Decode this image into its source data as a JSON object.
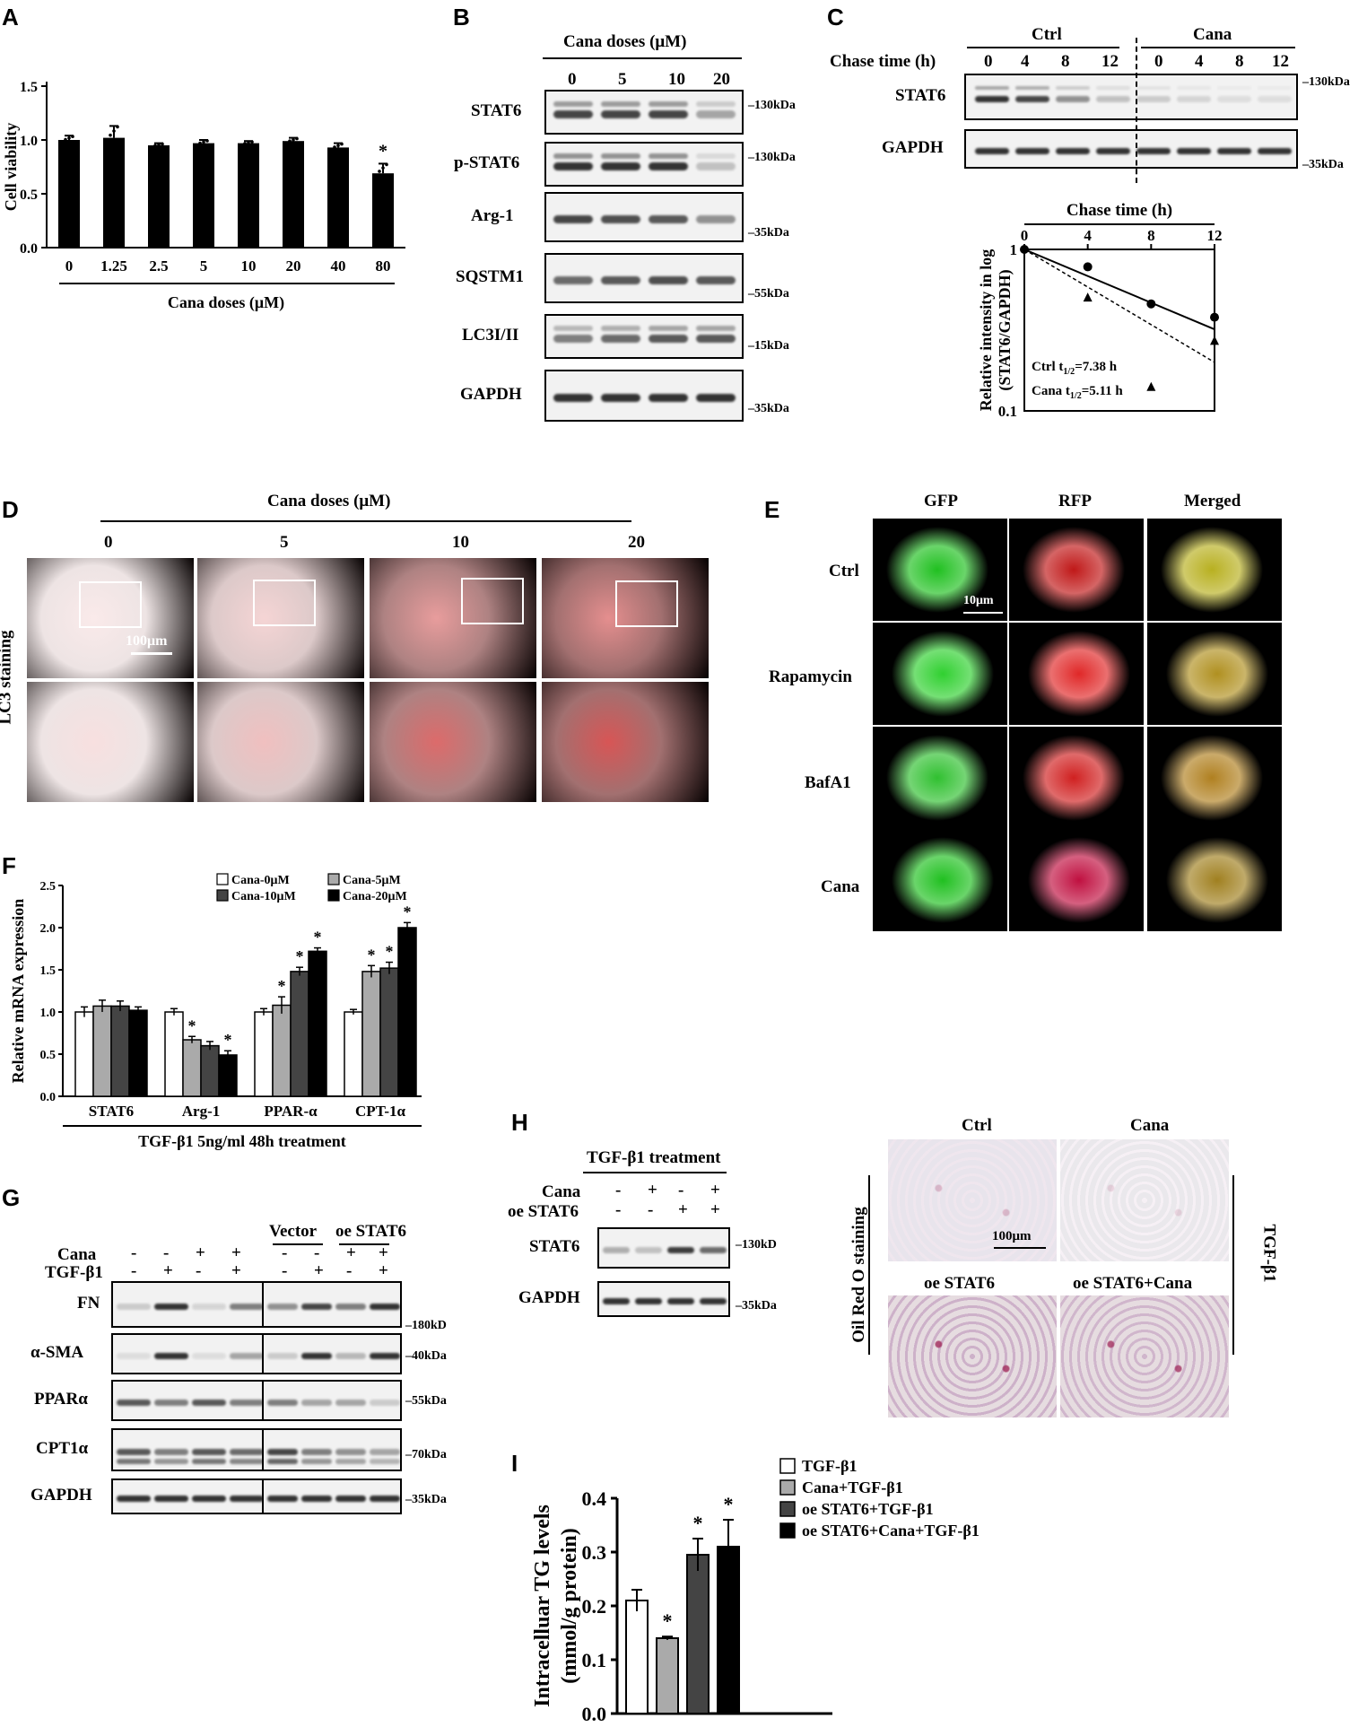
{
  "panels": {
    "A": "A",
    "B": "B",
    "C": "C",
    "D": "D",
    "E": "E",
    "F": "F",
    "G": "G",
    "H": "H",
    "I": "I"
  },
  "panelA": {
    "ylabel": "Cell viability",
    "xlabel": "Cana doses (μM)",
    "yticks": [
      "0.0",
      "0.5",
      "1.0",
      "1.5"
    ],
    "star": "*"
  },
  "panelB": {
    "title": "Cana doses (μM)",
    "lanes": [
      "0",
      "5",
      "10",
      "20"
    ],
    "rows": [
      {
        "label": "STAT6",
        "mw": "130kDa"
      },
      {
        "label": "p-STAT6",
        "mw": "130kDa"
      },
      {
        "label": "Arg-1",
        "mw": "35kDa"
      },
      {
        "label": "SQSTM1",
        "mw": "55kDa"
      },
      {
        "label": "LC3I/II",
        "mw": "15kDa"
      },
      {
        "label": "GAPDH",
        "mw": "35kDa"
      }
    ]
  },
  "panelC": {
    "groups": [
      "Ctrl",
      "Cana"
    ],
    "chase_label": "Chase time (h)",
    "lanes": [
      "0",
      "4",
      "8",
      "12",
      "0",
      "4",
      "8",
      "12"
    ],
    "rows": [
      {
        "label": "STAT6",
        "mw": "130kDa"
      },
      {
        "label": "GAPDH",
        "mw": "35kDa"
      }
    ],
    "plot_title": "Chase time (h)",
    "ylabel1": "Relative intensity in log",
    "ylabel2": "(STAT6/GAPDH)",
    "xticks": [
      "0",
      "4",
      "8",
      "12"
    ],
    "yticks": [
      "1",
      "0.1"
    ],
    "ctrl_half": "Ctrl t",
    "ctrl_half_val": "=7.38 h",
    "cana_half": "Cana t",
    "cana_half_val": "=5.11 h",
    "sub": "1/2"
  },
  "panelD": {
    "title": "Cana doses (μM)",
    "doses": [
      "0",
      "5",
      "10",
      "20"
    ],
    "ylabel": "LC3 staining",
    "scale": "100μm"
  },
  "panelE": {
    "cols": [
      "GFP",
      "RFP",
      "Merged"
    ],
    "rows": [
      "Ctrl",
      "Rapamycin",
      "BafA1",
      "Cana"
    ],
    "scale": "10μm"
  },
  "panelF": {
    "ylabel": "Relative mRNA expression",
    "xlabel": "TGF-β1 5ng/ml 48h treatment",
    "legend": [
      "Cana-0μM",
      "Cana-5μM",
      "Cana-10μM",
      "Cana-20μM"
    ],
    "yticks": [
      "0.0",
      "0.5",
      "1.0",
      "1.5",
      "2.0",
      "2.5"
    ],
    "star": "*"
  },
  "panelG": {
    "rowlabels": [
      "Cana",
      "TGF-β1"
    ],
    "left_signs": [
      [
        "-",
        "-",
        "+",
        "+"
      ],
      [
        "-",
        "+",
        "-",
        "+"
      ]
    ],
    "right_title1": "Vector",
    "right_title2": "oe STAT6",
    "right_signs": [
      [
        "-",
        "-",
        "+",
        "+"
      ],
      [
        "-",
        "+",
        "-",
        "+"
      ]
    ],
    "rows": [
      {
        "label": "FN",
        "mw": "180kD"
      },
      {
        "label": "α-SMA",
        "mw": "40kDa"
      },
      {
        "label": "PPARα",
        "mw": "55kDa"
      },
      {
        "label": "CPT1α",
        "mw": "70kDa"
      },
      {
        "label": "GAPDH",
        "mw": "35kDa"
      }
    ]
  },
  "panelH": {
    "title": "TGF-β1 treatment",
    "rowlabels": [
      "Cana",
      "oe STAT6"
    ],
    "signs": [
      [
        "-",
        "+",
        "-",
        "+"
      ],
      [
        "-",
        "-",
        "+",
        "+"
      ]
    ],
    "rows": [
      {
        "label": "STAT6",
        "mw": "130kD"
      },
      {
        "label": "GAPDH",
        "mw": "35kDa"
      }
    ],
    "stain_label": "Oil Red O staining",
    "cols": [
      "Ctrl",
      "Cana"
    ],
    "bottom": [
      "oe STAT6",
      "oe STAT6+Cana"
    ],
    "side": "TGF-β1",
    "scale": "100μm"
  },
  "panelI": {
    "ylabel1": "Intracelluar TG levels",
    "ylabel2": "(mmol/g protein)",
    "yticks": [
      "0.0",
      "0.1",
      "0.2",
      "0.3",
      "0.4"
    ],
    "legend": [
      "TGF-β1",
      "Cana+TGF-β1",
      "oe STAT6+TGF-β1",
      "oe STAT6+Cana+TGF-β1"
    ],
    "star": "*"
  },
  "colors": {
    "white": "#ffffff",
    "lightgray": "#aaaaaa",
    "darkgray": "#444444",
    "black": "#000000",
    "red": "#cc1010",
    "green": "#1bb01b"
  },
  "chart_data": [
    {
      "type": "bar",
      "panel": "A",
      "categories": [
        "0",
        "1.25",
        "2.5",
        "5",
        "10",
        "20",
        "40",
        "80"
      ],
      "values": [
        1.0,
        1.02,
        0.95,
        0.97,
        0.97,
        0.99,
        0.93,
        0.69
      ],
      "errors": [
        0.04,
        0.11,
        0.02,
        0.03,
        0.02,
        0.03,
        0.04,
        0.09
      ],
      "significant": [
        false,
        false,
        false,
        false,
        false,
        false,
        false,
        true
      ],
      "ylabel": "Cell viability",
      "xlabel": "Cana doses (μM)",
      "ylim": [
        0,
        1.5
      ]
    },
    {
      "type": "scatter",
      "panel": "C",
      "x": [
        0,
        4,
        8,
        12
      ],
      "series": [
        {
          "name": "Ctrl",
          "values": [
            1.0,
            0.78,
            0.46,
            0.38
          ]
        },
        {
          "name": "Cana",
          "values": [
            1.0,
            0.5,
            0.14,
            0.27
          ]
        }
      ],
      "yscale": "log",
      "ylim": [
        0.1,
        1
      ],
      "xlim": [
        0,
        12
      ]
    },
    {
      "type": "bar",
      "panel": "F",
      "categories": [
        "STAT6",
        "Arg-1",
        "PPAR-α",
        "CPT-1α"
      ],
      "series": [
        {
          "name": "Cana-0μM",
          "values": [
            1.0,
            1.0,
            1.0,
            1.0
          ],
          "errors": [
            0.06,
            0.04,
            0.04,
            0.03
          ]
        },
        {
          "name": "Cana-5μM",
          "values": [
            1.07,
            0.67,
            1.08,
            1.48
          ],
          "errors": [
            0.07,
            0.04,
            0.1,
            0.07
          ]
        },
        {
          "name": "Cana-10μM",
          "values": [
            1.07,
            0.6,
            1.48,
            1.52
          ],
          "errors": [
            0.06,
            0.05,
            0.05,
            0.07
          ]
        },
        {
          "name": "Cana-20μM",
          "values": [
            1.02,
            0.49,
            1.72,
            2.0
          ],
          "errors": [
            0.04,
            0.05,
            0.04,
            0.06
          ]
        }
      ],
      "significant": [
        [
          false,
          false,
          false,
          false
        ],
        [
          false,
          true,
          true,
          true
        ],
        [
          false,
          false,
          true,
          true
        ],
        [
          false,
          true,
          true,
          true
        ]
      ],
      "ylabel": "Relative mRNA expression",
      "xlabel": "TGF-β1 5ng/ml 48h treatment",
      "ylim": [
        0,
        2.5
      ]
    },
    {
      "type": "bar",
      "panel": "I",
      "categories": [
        "TGF-β1",
        "Cana+TGF-β1",
        "oe STAT6+TGF-β1",
        "oe STAT6+Cana+TGF-β1"
      ],
      "values": [
        0.21,
        0.14,
        0.295,
        0.31
      ],
      "errors": [
        0.02,
        0.003,
        0.03,
        0.05
      ],
      "significant": [
        false,
        true,
        true,
        true
      ],
      "ylabel": "Intracelluar TG levels (mmol/g protein)",
      "ylim": [
        0,
        0.4
      ]
    }
  ]
}
